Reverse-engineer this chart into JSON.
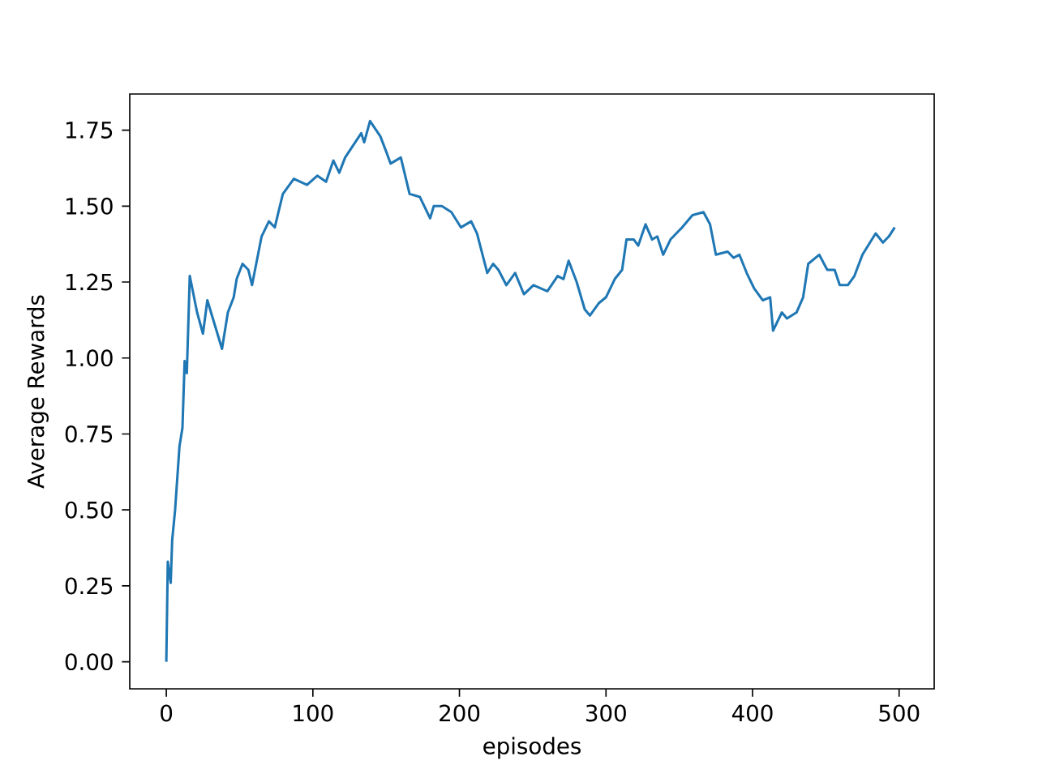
{
  "chart_data": {
    "type": "line",
    "xlabel": "episodes",
    "ylabel": "Average Rewards",
    "xlim": [
      -24.95,
      523.95
    ],
    "ylim": [
      -0.089,
      1.869
    ],
    "xticks": [
      0,
      100,
      200,
      300,
      400,
      500
    ],
    "yticks": [
      {
        "value": 0,
        "label": "0.00"
      },
      {
        "value": 0.25,
        "label": "0.25"
      },
      {
        "value": 0.5,
        "label": "0.50"
      },
      {
        "value": 0.75,
        "label": "0.75"
      },
      {
        "value": 1,
        "label": "1.00"
      },
      {
        "value": 1.25,
        "label": "1.25"
      },
      {
        "value": 1.5,
        "label": "1.50"
      },
      {
        "value": 1.75,
        "label": "1.75"
      }
    ],
    "grid": false,
    "marker": "none",
    "line_style": "solid",
    "x": [
      0,
      1,
      3,
      4,
      6,
      7,
      9,
      11,
      12.5,
      14,
      16,
      21,
      25,
      28,
      33,
      38,
      42,
      46,
      48,
      52,
      56,
      58.5,
      65,
      70,
      74,
      79.5,
      87,
      96,
      103,
      109,
      114,
      118,
      122,
      133,
      135,
      139,
      146,
      150,
      153,
      160,
      166,
      173,
      180,
      182.5,
      188,
      194.5,
      201,
      208,
      212,
      219,
      223,
      226.6,
      232,
      238,
      244,
      250.5,
      260,
      267,
      271,
      274.5,
      280,
      285.5,
      289,
      295,
      300,
      306,
      311,
      314,
      319,
      322,
      327,
      331.5,
      335,
      339,
      344,
      350,
      352,
      359,
      366.5,
      371,
      375,
      383,
      387,
      391,
      396,
      401,
      407,
      412,
      414,
      420,
      423.5,
      430,
      434.5,
      438,
      445.5,
      451,
      456,
      459.5,
      465,
      469.5,
      475,
      484,
      489,
      493,
      497
    ],
    "series": [
      {
        "color": "#1f77b4",
        "values": [
          0,
          0.33,
          0.26,
          0.4,
          0.5,
          0.57,
          0.71,
          0.77,
          0.99,
          0.95,
          1.27,
          1.15,
          1.08,
          1.19,
          1.11,
          1.03,
          1.15,
          1.2,
          1.26,
          1.31,
          1.29,
          1.24,
          1.4,
          1.45,
          1.43,
          1.54,
          1.59,
          1.57,
          1.6,
          1.58,
          1.65,
          1.61,
          1.66,
          1.74,
          1.71,
          1.78,
          1.73,
          1.68,
          1.64,
          1.66,
          1.54,
          1.53,
          1.46,
          1.5,
          1.5,
          1.48,
          1.43,
          1.45,
          1.41,
          1.28,
          1.31,
          1.29,
          1.24,
          1.28,
          1.21,
          1.24,
          1.22,
          1.27,
          1.26,
          1.32,
          1.25,
          1.16,
          1.14,
          1.18,
          1.2,
          1.26,
          1.29,
          1.39,
          1.39,
          1.37,
          1.44,
          1.39,
          1.4,
          1.34,
          1.39,
          1.42,
          1.43,
          1.47,
          1.48,
          1.44,
          1.34,
          1.35,
          1.33,
          1.34,
          1.28,
          1.23,
          1.19,
          1.2,
          1.09,
          1.15,
          1.13,
          1.15,
          1.2,
          1.31,
          1.34,
          1.29,
          1.29,
          1.24,
          1.24,
          1.27,
          1.34,
          1.41,
          1.38,
          1.4,
          1.43
        ]
      }
    ]
  }
}
